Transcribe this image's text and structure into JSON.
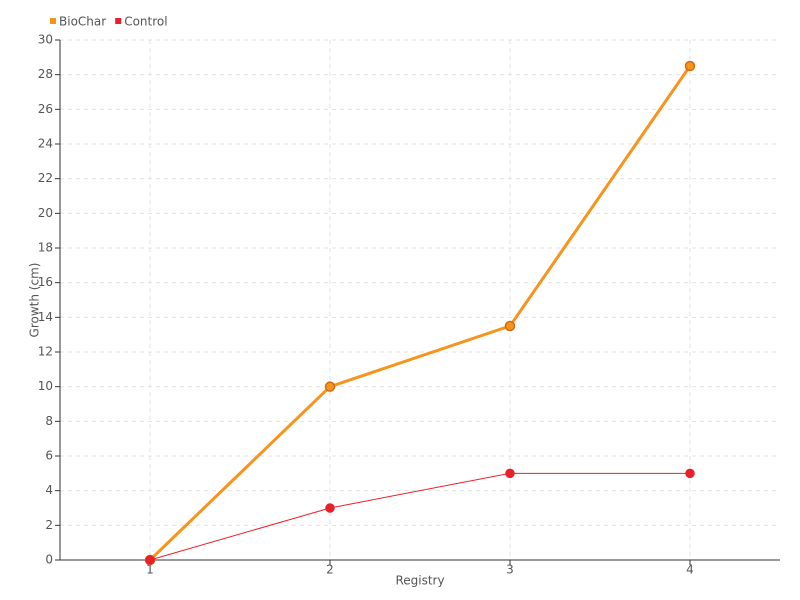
{
  "chart_data": {
    "type": "line",
    "x_label": "Registry",
    "y_label": "Growth (cm)",
    "x": [
      1,
      2,
      3,
      4
    ],
    "xlim": [
      0.5,
      4.5
    ],
    "xticks": [
      1,
      2,
      3,
      4
    ],
    "ylim": [
      0,
      30
    ],
    "yticks": [
      0,
      2,
      4,
      6,
      8,
      10,
      12,
      14,
      16,
      18,
      20,
      22,
      24,
      26,
      28,
      30
    ],
    "grid": true,
    "legend": "top-left",
    "series": [
      {
        "name": "BioChar",
        "color": "#f7941d",
        "values": [
          0,
          10,
          13.5,
          28.5
        ]
      },
      {
        "name": "Control",
        "color": "#e8202a",
        "values": [
          0,
          3,
          5,
          5
        ]
      }
    ]
  }
}
